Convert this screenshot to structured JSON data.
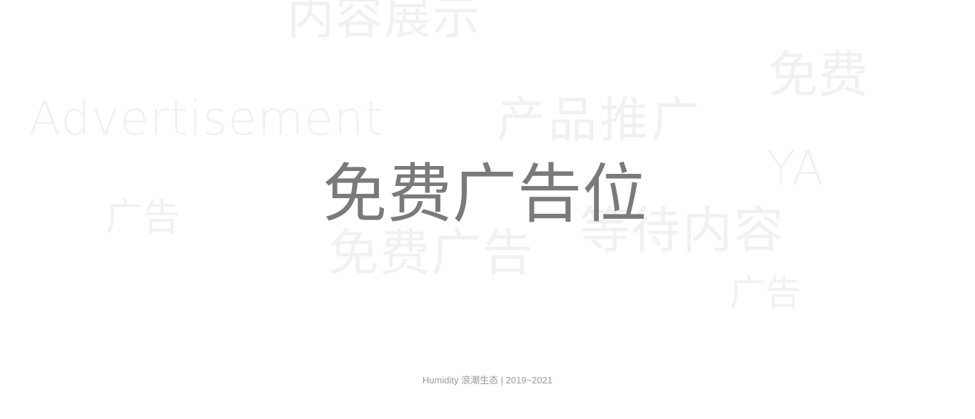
{
  "background_words": [
    "内容展示",
    "免费",
    "Advertisement",
    "产品推广",
    "YA",
    "广告",
    "等待内容",
    "免费广告",
    "广告"
  ],
  "headline": "免费广告位",
  "footer": "Humidity 浪潮生态 | 2019~2021",
  "colors": {
    "background": "#ffffff",
    "headline": "#7a7a7a",
    "ghost_text": "#f1f1f1",
    "footer": "#9a9a9a"
  }
}
